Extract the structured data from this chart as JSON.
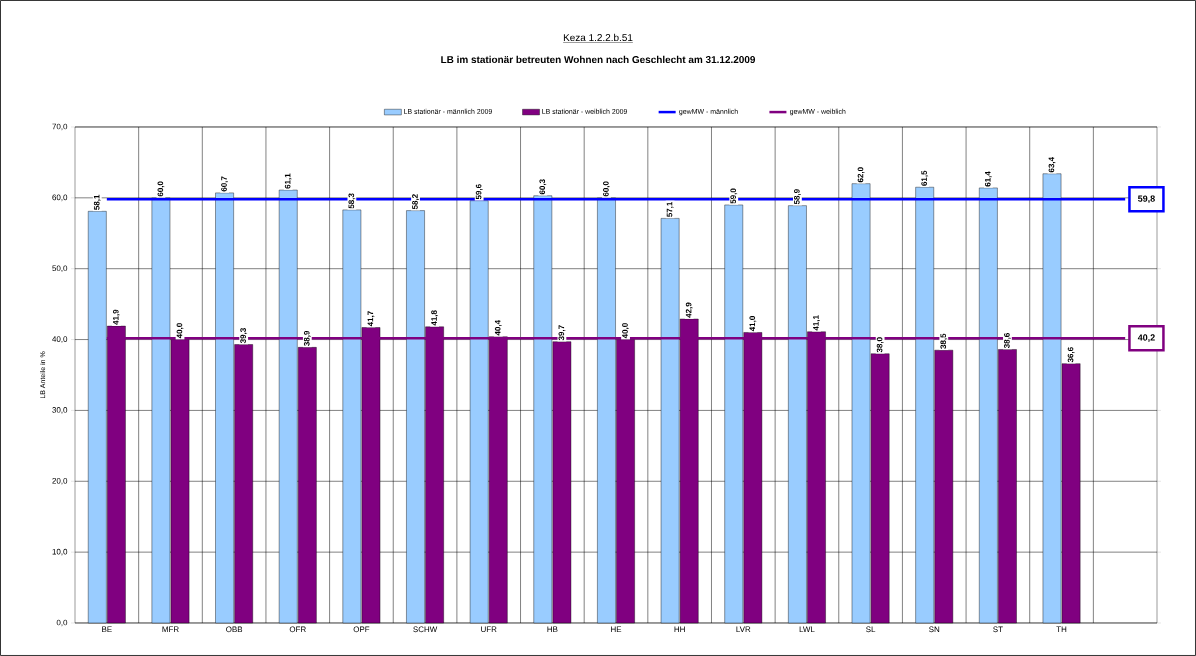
{
  "chart_data": {
    "type": "bar",
    "title": "Keza 1.2.2.b.51",
    "subtitle": "LB im stationär betreuten Wohnen nach Geschlecht am 31.12.2009",
    "ylabel": "LB Anteile in %",
    "categories": [
      "BE",
      "MFR",
      "OBB",
      "OFR",
      "OPF",
      "SCHW",
      "UFR",
      "HB",
      "HE",
      "HH",
      "LVR",
      "LWL",
      "SL",
      "SN",
      "ST",
      "TH",
      null
    ],
    "series": [
      {
        "name": "LB stationär - männlich 2009",
        "color": "#99ccff",
        "values": [
          58.1,
          60.0,
          60.7,
          61.1,
          58.3,
          58.2,
          59.6,
          60.3,
          60.0,
          57.1,
          59.0,
          58.9,
          62.0,
          61.5,
          61.4,
          63.4,
          null
        ],
        "value_labels": [
          "58,1",
          "60,0",
          "60,7",
          "61,1",
          "58,3",
          "58,2",
          "59,6",
          "60,3",
          "60,0",
          "57,1",
          "59,0",
          "58,9",
          "62,0",
          "61,5",
          "61,4",
          "63,4",
          null
        ]
      },
      {
        "name": "LB stationär - weiblich 2009",
        "color": "#800080",
        "values": [
          41.9,
          40.0,
          39.3,
          38.9,
          41.7,
          41.8,
          40.4,
          39.7,
          40.0,
          42.9,
          41.0,
          41.1,
          38.0,
          38.5,
          38.6,
          36.6,
          null
        ],
        "value_labels": [
          "41,9",
          "40,0",
          "39,3",
          "38,9",
          "41,7",
          "41,8",
          "40,4",
          "39,7",
          "40,0",
          "42,9",
          "41,0",
          "41,1",
          "38,0",
          "38,5",
          "38,6",
          "36,6",
          null
        ]
      },
      {
        "name": "gewMW - männlich",
        "type": "line",
        "color": "#0000ff",
        "values": [
          59.8,
          59.8,
          59.8,
          59.8,
          59.8,
          59.8,
          59.8,
          59.8,
          59.8,
          59.8,
          59.8,
          59.8,
          59.8,
          59.8,
          59.8,
          59.8,
          59.8
        ],
        "value_labels": [
          null,
          null,
          null,
          null,
          null,
          null,
          null,
          null,
          null,
          null,
          null,
          null,
          null,
          null,
          null,
          null,
          "59,8"
        ]
      },
      {
        "name": "gewMW - weiblich",
        "type": "line",
        "color": "#800080",
        "values": [
          40.2,
          40.2,
          40.2,
          40.2,
          40.2,
          40.2,
          40.2,
          40.2,
          40.2,
          40.2,
          40.2,
          40.2,
          40.2,
          40.2,
          40.2,
          40.2,
          40.2
        ],
        "value_labels": [
          null,
          null,
          null,
          null,
          null,
          null,
          null,
          null,
          null,
          null,
          null,
          null,
          null,
          null,
          null,
          null,
          "40,2"
        ]
      }
    ],
    "ylim": [
      0,
      70
    ],
    "yticks": [
      {
        "value": 0,
        "label": "0,0"
      },
      {
        "value": 10,
        "label": "10,0"
      },
      {
        "value": 20,
        "label": "20,0"
      },
      {
        "value": 30,
        "label": "30,0"
      },
      {
        "value": 40,
        "label": "40,0"
      },
      {
        "value": 50,
        "label": "50,0"
      },
      {
        "value": 60,
        "label": "60,0"
      },
      {
        "value": 70,
        "label": "70,0"
      }
    ],
    "grid": true,
    "legend": "top",
    "marker": "none",
    "line_style": "solid"
  }
}
